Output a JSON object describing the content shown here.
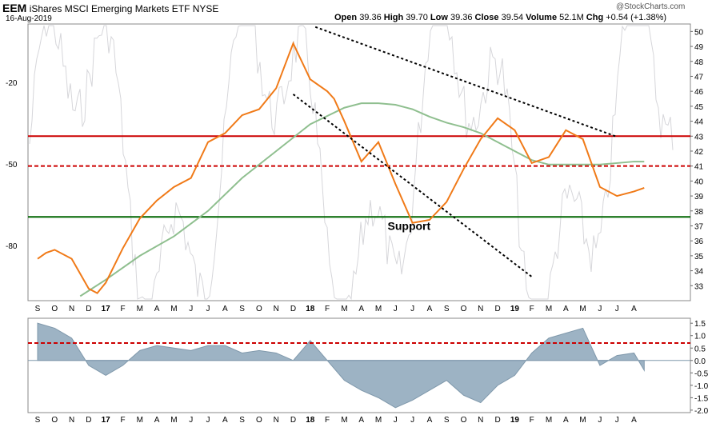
{
  "header": {
    "ticker": "EEM",
    "name": "iShares MSCI Emerging Markets ETF",
    "exchange": "NYSE",
    "date": "16-Aug-2019",
    "open_label": "Open",
    "open": "39.36",
    "high_label": "High",
    "high": "39.70",
    "low_label": "Low",
    "low": "39.36",
    "close_label": "Close",
    "close": "39.54",
    "volume_label": "Volume",
    "volume": "52.1M",
    "chg_label": "Chg",
    "chg": "+0.54 (+1.38%)",
    "watermark": "@StockCharts.com"
  },
  "chart_data": [
    {
      "type": "line",
      "panel": "price",
      "annotations": [
        "Support"
      ],
      "x_tick_labels": [
        "S",
        "O",
        "N",
        "D",
        "17",
        "F",
        "M",
        "A",
        "M",
        "J",
        "J",
        "A",
        "S",
        "O",
        "N",
        "D",
        "18",
        "F",
        "M",
        "A",
        "M",
        "J",
        "J",
        "A",
        "S",
        "O",
        "N",
        "D",
        "19",
        "F",
        "M",
        "A",
        "M",
        "J",
        "J",
        "A"
      ],
      "bold_x_ticks": [
        "17",
        "18",
        "19"
      ],
      "ylim_right": [
        32,
        50.5
      ],
      "y_ticks_right": [
        33,
        34,
        35,
        36,
        37,
        38,
        39,
        40,
        41,
        42,
        43,
        44,
        45,
        46,
        47,
        48,
        49,
        50
      ],
      "y_ticks_left": [
        "-20",
        "-50",
        "-80"
      ],
      "series": [
        {
          "color": "#f07a18",
          "x": [
            0,
            0.5,
            1,
            2,
            3,
            3.5,
            4,
            5,
            6,
            7,
            8,
            9,
            10,
            11,
            12,
            13,
            14,
            15,
            16,
            17,
            17.4,
            18,
            19,
            20,
            21,
            22,
            23,
            24,
            25,
            26,
            27,
            28,
            29,
            30,
            31,
            32,
            33,
            34,
            35,
            35.6
          ],
          "values": [
            34.8,
            35.2,
            35.4,
            34.8,
            32.8,
            32.5,
            33.2,
            35.5,
            37.5,
            38.7,
            39.6,
            40.2,
            42.6,
            43.2,
            44.4,
            44.8,
            46.2,
            49.2,
            46.8,
            46.0,
            45.5,
            44.0,
            41.3,
            42.6,
            39.8,
            37.2,
            37.4,
            38.6,
            40.8,
            42.8,
            44.2,
            43.4,
            41.2,
            41.6,
            43.4,
            42.8,
            39.6,
            39.0,
            39.3,
            39.54
          ]
        }
      ],
      "moving_average": {
        "color": "#8fbf8f",
        "x": [
          2.5,
          4,
          6,
          8,
          10,
          12,
          14,
          16,
          18,
          19,
          20,
          21,
          22,
          23,
          24,
          25,
          26,
          27,
          28,
          29,
          30,
          31,
          32,
          33,
          34,
          35,
          35.6
        ],
        "values": [
          32.3,
          33.4,
          35.0,
          36.3,
          38.0,
          40.2,
          42.0,
          43.8,
          44.9,
          45.2,
          45.2,
          45.1,
          44.8,
          44.3,
          43.9,
          43.6,
          43.2,
          42.6,
          42.0,
          41.4,
          41.1,
          41.1,
          41.1,
          41.1,
          41.2,
          41.3,
          41.3
        ]
      },
      "horizontal_lines": [
        {
          "value": 43.0,
          "color": "#cc0000",
          "style": "solid"
        },
        {
          "value": 41.0,
          "color": "#cc0000",
          "style": "dashed"
        },
        {
          "value": 37.6,
          "color": "#006600",
          "style": "solid"
        }
      ],
      "trendlines": [
        {
          "x": [
            16.3,
            33.9
          ],
          "values": [
            50.3,
            43.0
          ],
          "color": "#000000",
          "style": "dotted"
        },
        {
          "x": [
            15.0,
            29.0
          ],
          "values": [
            45.8,
            33.6
          ],
          "color": "#000000",
          "style": "dotted"
        }
      ]
    },
    {
      "type": "area",
      "panel": "indicator",
      "ylim": [
        -2.1,
        1.7
      ],
      "y_ticks": [
        "1.5",
        "1.0",
        "0.5",
        "0.0",
        "-0.5",
        "-1.0",
        "-1.5",
        "-2.0"
      ],
      "x": [
        0,
        1,
        2,
        3,
        4,
        5,
        6,
        7,
        8,
        9,
        10,
        11,
        12,
        13,
        14,
        15,
        16,
        17,
        18,
        19,
        20,
        21,
        22,
        23,
        24,
        25,
        26,
        27,
        28,
        29,
        30,
        31,
        32,
        33,
        34,
        35,
        35.6
      ],
      "values": [
        1.5,
        1.3,
        0.9,
        -0.2,
        -0.6,
        -0.2,
        0.4,
        0.6,
        0.5,
        0.4,
        0.6,
        0.6,
        0.3,
        0.4,
        0.3,
        0.0,
        0.8,
        0.0,
        -0.8,
        -1.2,
        -1.5,
        -1.9,
        -1.6,
        -1.2,
        -0.8,
        -1.4,
        -1.7,
        -1.0,
        -0.6,
        0.3,
        0.9,
        1.1,
        1.3,
        -0.2,
        0.2,
        0.3,
        -0.4
      ],
      "horizontal_line": {
        "value": 0.7,
        "color": "#cc0000",
        "style": "dashed"
      },
      "x_tick_labels": [
        "S",
        "O",
        "N",
        "D",
        "17",
        "F",
        "M",
        "A",
        "M",
        "J",
        "J",
        "A",
        "S",
        "O",
        "N",
        "D",
        "18",
        "F",
        "M",
        "A",
        "M",
        "J",
        "J",
        "A",
        "S",
        "O",
        "N",
        "D",
        "19",
        "F",
        "M",
        "A",
        "M",
        "J",
        "J",
        "A"
      ]
    }
  ]
}
